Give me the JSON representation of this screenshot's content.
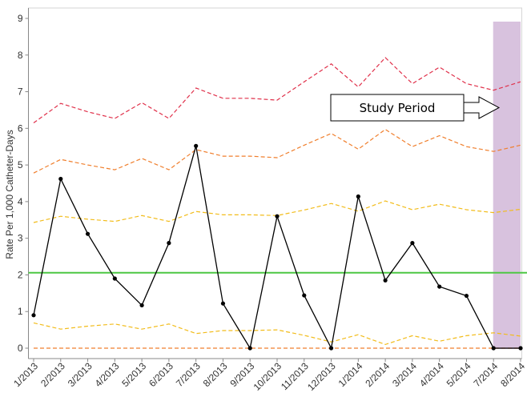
{
  "chart_data": {
    "type": "line",
    "title": "",
    "xlabel": "",
    "ylabel": "Rate Per 1,000 Catheter-Days",
    "categories": [
      "1/2013",
      "2/2013",
      "3/2013",
      "4/2013",
      "5/2013",
      "6/2013",
      "7/2013",
      "8/2013",
      "9/2013",
      "10/2013",
      "11/2013",
      "12/2013",
      "1/2014",
      "2/2014",
      "3/2014",
      "4/2014",
      "5/2014",
      "7/2014",
      "8/2014"
    ],
    "ylim": [
      0,
      9
    ],
    "yticks": [
      "0",
      "1",
      "2",
      "3",
      "4",
      "5",
      "6",
      "7",
      "8",
      "9"
    ],
    "center_line": 2.06,
    "series": [
      {
        "role": "observed",
        "color": "#000000",
        "values": [
          0.9,
          4.62,
          3.12,
          1.9,
          1.17,
          2.87,
          5.52,
          1.22,
          0.0,
          3.6,
          1.44,
          0.0,
          4.14,
          1.85,
          2.87,
          1.68,
          1.43,
          0.0,
          0.0
        ]
      },
      {
        "role": "upper-3sd",
        "color": "#e0304a",
        "values": [
          6.15,
          6.68,
          6.45,
          6.27,
          6.7,
          6.27,
          7.1,
          6.82,
          6.82,
          6.77,
          7.27,
          7.76,
          7.13,
          7.93,
          7.22,
          7.67,
          7.22,
          7.04,
          7.27
        ]
      },
      {
        "role": "upper-2sd",
        "color": "#f07f2d",
        "values": [
          4.78,
          5.15,
          5.0,
          4.87,
          5.18,
          4.87,
          5.42,
          5.24,
          5.24,
          5.2,
          5.54,
          5.86,
          5.43,
          5.97,
          5.5,
          5.8,
          5.5,
          5.37,
          5.54
        ]
      },
      {
        "role": "upper-1sd",
        "color": "#f2bc1a",
        "values": [
          3.43,
          3.6,
          3.52,
          3.46,
          3.62,
          3.46,
          3.73,
          3.64,
          3.64,
          3.62,
          3.77,
          3.95,
          3.74,
          4.02,
          3.78,
          3.93,
          3.78,
          3.7,
          3.79
        ]
      },
      {
        "role": "lower-1sd",
        "color": "#f2bc1a",
        "values": [
          0.69,
          0.52,
          0.6,
          0.66,
          0.52,
          0.66,
          0.4,
          0.48,
          0.48,
          0.5,
          0.35,
          0.17,
          0.37,
          0.1,
          0.34,
          0.19,
          0.34,
          0.42,
          0.33
        ]
      },
      {
        "role": "lower-2sd",
        "color": "#f07f2d",
        "values": [
          0,
          0,
          0,
          0,
          0,
          0,
          0,
          0,
          0,
          0,
          0,
          0,
          0,
          0,
          0,
          0,
          0,
          0,
          0
        ]
      }
    ],
    "center_color": "#4dc744",
    "study_period": {
      "label": "Study Period",
      "from": "7/2014",
      "to": "8/2014",
      "color": "#d8c2de"
    },
    "grid": false,
    "legend": "none"
  }
}
